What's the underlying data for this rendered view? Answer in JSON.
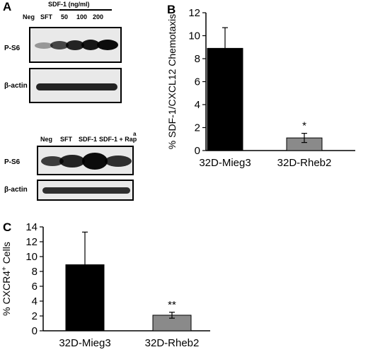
{
  "panels": {
    "a": "A",
    "b": "B",
    "c": "C"
  },
  "blot_top": {
    "sdf_header": "SDF-1 (ng/ml)",
    "lanes": [
      "Neg",
      "SFT",
      "50",
      "100",
      "200"
    ],
    "row1_label": "P-S6",
    "row2_label": "β-actin",
    "band_intensity_row1": [
      0.25,
      0.7,
      0.85,
      0.9,
      0.95
    ],
    "band_intensity_row2": [
      0.85,
      0.85,
      0.85,
      0.85,
      0.85
    ]
  },
  "blot_bottom": {
    "lanes": [
      "Neg",
      "SFT",
      "SDF-1",
      "SDF-1 + Rap"
    ],
    "superscript": "a",
    "row1_label": "P-S6",
    "row2_label": "β-actin",
    "band_intensity_row1": [
      0.75,
      0.85,
      0.95,
      0.8
    ],
    "band_intensity_row2": [
      0.8,
      0.8,
      0.8,
      0.8
    ]
  },
  "chart_data": [
    {
      "type": "bar",
      "panel": "B",
      "categories": [
        "32D-Mieg3",
        "32D-Rheb2"
      ],
      "values": [
        8.9,
        1.1
      ],
      "errors": [
        1.8,
        0.4
      ],
      "significance": [
        "",
        "*"
      ],
      "colors": [
        "#000000",
        "#8a8a8a"
      ],
      "ylabel": "% SDF-1/CXCL12 Chemotaxis",
      "ylim": [
        0,
        12
      ],
      "yticks": [
        "0",
        "2",
        "4",
        "6",
        "8",
        "10",
        "12"
      ],
      "grid": false
    },
    {
      "type": "bar",
      "panel": "C",
      "categories": [
        "32D-Mieg3",
        "32D-Rheb2"
      ],
      "values": [
        8.9,
        2.1
      ],
      "errors": [
        4.4,
        0.4
      ],
      "significance": [
        "",
        "**"
      ],
      "colors": [
        "#000000",
        "#8a8a8a"
      ],
      "ylabel_main": "% CXCR4",
      "ylabel_sup": "+",
      "ylabel_tail": " Cells",
      "ylim": [
        0,
        14
      ],
      "yticks": [
        "0",
        "2",
        "4",
        "6",
        "8",
        "10",
        "12",
        "14"
      ],
      "grid": false
    }
  ]
}
